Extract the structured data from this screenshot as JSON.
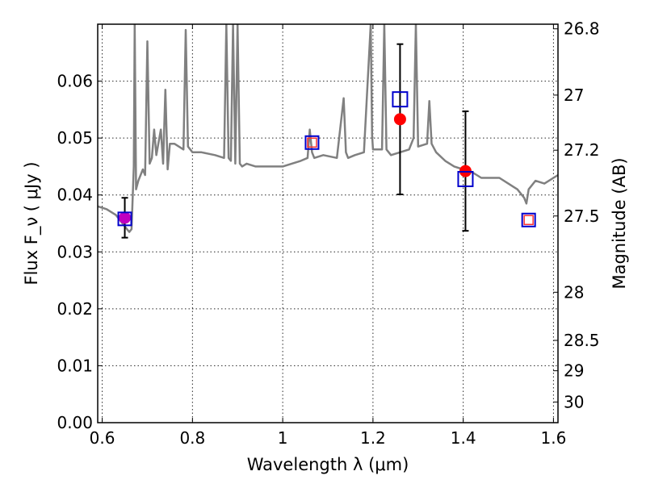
{
  "chart_data": {
    "type": "scatter",
    "xlabel": "Wavelength  λ (μm)",
    "ylabel": "Flux  F_ν  ( μJy )",
    "y2label": "Magnitude (AB)",
    "xlim": [
      0.59,
      1.61
    ],
    "ylim": [
      0.0,
      0.07
    ],
    "grid": true,
    "x_ticks": [
      {
        "value": 0.6,
        "label": "0.6"
      },
      {
        "value": 0.8,
        "label": "0.8"
      },
      {
        "value": 1.0,
        "label": "1"
      },
      {
        "value": 1.2,
        "label": "1.2"
      },
      {
        "value": 1.4,
        "label": "1.4"
      },
      {
        "value": 1.6,
        "label": "1.6"
      }
    ],
    "y_ticks": [
      {
        "value": 0.0,
        "label": "0.00"
      },
      {
        "value": 0.01,
        "label": "0.01"
      },
      {
        "value": 0.02,
        "label": "0.02"
      },
      {
        "value": 0.03,
        "label": "0.03"
      },
      {
        "value": 0.04,
        "label": "0.04"
      },
      {
        "value": 0.05,
        "label": "0.05"
      },
      {
        "value": 0.06,
        "label": "0.06"
      }
    ],
    "y2_ticks": [
      {
        "value": 26.8,
        "label": "26.8"
      },
      {
        "value": 27.0,
        "label": "27"
      },
      {
        "value": 27.2,
        "label": "27.2"
      },
      {
        "value": 27.5,
        "label": "27.5"
      },
      {
        "value": 28.0,
        "label": "28"
      },
      {
        "value": 28.5,
        "label": "28.5"
      },
      {
        "value": 29.0,
        "label": "29"
      },
      {
        "value": 30.0,
        "label": "30"
      }
    ],
    "spectrum": {
      "color": "#808080",
      "x": [
        0.59,
        0.61,
        0.63,
        0.645,
        0.655,
        0.66,
        0.665,
        0.67,
        0.672,
        0.675,
        0.68,
        0.69,
        0.695,
        0.7,
        0.705,
        0.71,
        0.715,
        0.72,
        0.73,
        0.735,
        0.74,
        0.745,
        0.75,
        0.76,
        0.78,
        0.785,
        0.79,
        0.8,
        0.82,
        0.85,
        0.87,
        0.875,
        0.88,
        0.885,
        0.89,
        0.895,
        0.9,
        0.905,
        0.91,
        0.92,
        0.94,
        0.96,
        0.98,
        1.0,
        1.02,
        1.04,
        1.055,
        1.06,
        1.065,
        1.07,
        1.09,
        1.12,
        1.135,
        1.14,
        1.145,
        1.16,
        1.18,
        1.195,
        1.198,
        1.2,
        1.22,
        1.225,
        1.23,
        1.24,
        1.26,
        1.28,
        1.29,
        1.295,
        1.3,
        1.32,
        1.325,
        1.33,
        1.34,
        1.36,
        1.38,
        1.4,
        1.42,
        1.44,
        1.46,
        1.48,
        1.5,
        1.52,
        1.535,
        1.54,
        1.545,
        1.56,
        1.58,
        1.6,
        1.61
      ],
      "y": [
        0.038,
        0.0375,
        0.0365,
        0.035,
        0.034,
        0.0335,
        0.034,
        0.045,
        0.07,
        0.041,
        0.0425,
        0.0445,
        0.0435,
        0.067,
        0.0455,
        0.0465,
        0.0515,
        0.047,
        0.0515,
        0.0455,
        0.0585,
        0.0445,
        0.049,
        0.049,
        0.048,
        0.069,
        0.0485,
        0.0475,
        0.0475,
        0.047,
        0.0465,
        0.07,
        0.0465,
        0.046,
        0.07,
        0.0455,
        0.07,
        0.0455,
        0.045,
        0.0455,
        0.045,
        0.045,
        0.045,
        0.045,
        0.0455,
        0.046,
        0.0465,
        0.0515,
        0.0475,
        0.0465,
        0.047,
        0.0465,
        0.057,
        0.0475,
        0.0465,
        0.047,
        0.0475,
        0.07,
        0.0505,
        0.048,
        0.048,
        0.07,
        0.048,
        0.047,
        0.0475,
        0.048,
        0.05,
        0.07,
        0.0485,
        0.049,
        0.0565,
        0.049,
        0.0475,
        0.046,
        0.045,
        0.0445,
        0.044,
        0.043,
        0.043,
        0.043,
        0.042,
        0.041,
        0.0395,
        0.0385,
        0.041,
        0.0425,
        0.042,
        0.043,
        0.0435
      ]
    },
    "photometry": [
      {
        "x": 0.65,
        "y": 0.036,
        "yerr": 0.0035,
        "marker": "circle",
        "color": "#c000c0"
      },
      {
        "x": 1.26,
        "y": 0.0533,
        "yerr": 0.0132,
        "marker": "circle",
        "color": "#ff0000"
      },
      {
        "x": 1.405,
        "y": 0.0442,
        "yerr": 0.0105,
        "marker": "circle",
        "color": "#ff0000"
      }
    ],
    "model_boxes": [
      {
        "x": 0.65,
        "y": 0.0358,
        "size": 16,
        "color": "#0000cc"
      },
      {
        "x": 1.065,
        "y": 0.0492,
        "size": 16,
        "color": "#0000cc"
      },
      {
        "x": 1.26,
        "y": 0.0568,
        "size": 18,
        "color": "#0000cc"
      },
      {
        "x": 1.405,
        "y": 0.0428,
        "size": 18,
        "color": "#0000cc"
      },
      {
        "x": 1.545,
        "y": 0.0356,
        "size": 16,
        "color": "#0000cc"
      }
    ],
    "inner_boxes": [
      {
        "x": 1.065,
        "y": 0.0492,
        "size": 11,
        "color": "#ff3333"
      },
      {
        "x": 1.545,
        "y": 0.0356,
        "size": 11,
        "color": "#ff3333"
      }
    ]
  }
}
